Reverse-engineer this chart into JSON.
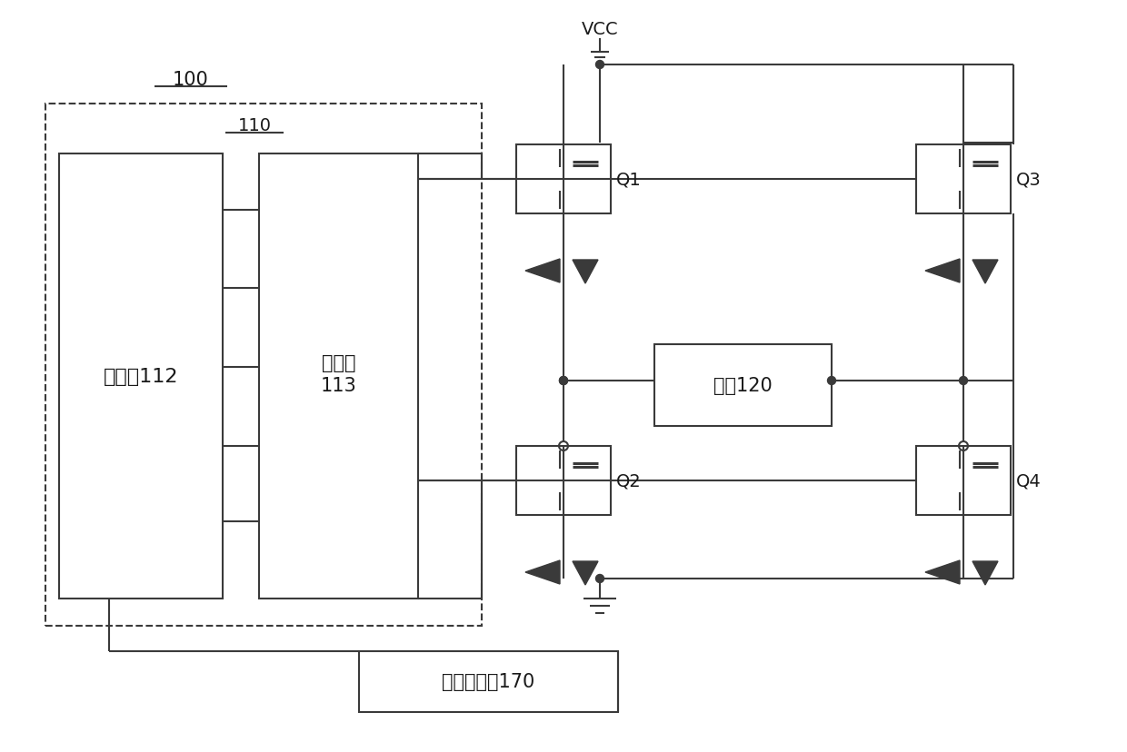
{
  "bg_color": "#ffffff",
  "line_color": "#3a3a3a",
  "text_color": "#1a1a1a",
  "font_size": 14,
  "label_100": "100",
  "label_110": "110",
  "label_proc": "处理器112",
  "label_driver_line1": "驱动器",
  "label_driver_line2": "113",
  "label_motor": "电机120",
  "label_sensor": "位置传感器170",
  "label_vcc": "VCC",
  "label_q1": "Q1",
  "label_q2": "Q2",
  "label_q3": "Q3",
  "label_q4": "Q4"
}
